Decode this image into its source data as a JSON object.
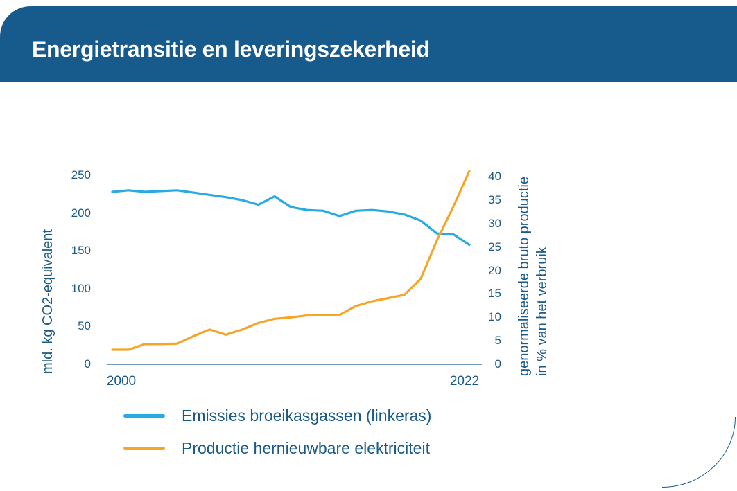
{
  "header": {
    "title": "Energietransitie en leveringszekerheid"
  },
  "colors": {
    "banner_bg": "#175b8d",
    "banner_text": "#ffffff",
    "axis_text": "#1a5a87",
    "axis_line": "#1a5a87",
    "emissions_line": "#29aae2",
    "renewables_line": "#f5a527",
    "corner_arc": "#1a5a87"
  },
  "chart_data": {
    "type": "line",
    "x": [
      2000,
      2001,
      2002,
      2003,
      2004,
      2005,
      2006,
      2007,
      2008,
      2009,
      2010,
      2011,
      2012,
      2013,
      2014,
      2015,
      2016,
      2017,
      2018,
      2019,
      2020,
      2021,
      2022
    ],
    "x_tick_labels": [
      "2000",
      "2022"
    ],
    "series": [
      {
        "name": "Emissies broeikasgassen (linkeras)",
        "axis": "left",
        "color": "#29aae2",
        "values": [
          228,
          230,
          228,
          229,
          230,
          227,
          224,
          221,
          217,
          211,
          222,
          208,
          204,
          203,
          196,
          203,
          204,
          202,
          198,
          190,
          173,
          172,
          158
        ]
      },
      {
        "name": "Productie hernieuwbare elektriciteit",
        "axis": "right",
        "color": "#f5a527",
        "values": [
          3.1,
          3.1,
          4.3,
          4.3,
          4.4,
          6.0,
          7.4,
          6.3,
          7.4,
          8.8,
          9.7,
          10.0,
          10.4,
          10.5,
          10.5,
          12.4,
          13.4,
          14.1,
          14.8,
          18.2,
          26.4,
          33.5,
          41.2
        ]
      }
    ],
    "left_axis": {
      "label": "mld. kg CO2-equivalent",
      "ticks": [
        0,
        50,
        100,
        150,
        200,
        250
      ],
      "range": [
        0,
        250
      ]
    },
    "right_axis": {
      "label_line1": "genormaliseerde bruto productie",
      "label_line2": "in % van het verbruik",
      "ticks": [
        0,
        5,
        10,
        15,
        20,
        25,
        30,
        35,
        40
      ],
      "range": [
        0,
        41.3
      ]
    },
    "grid": false,
    "legend_position": "bottom-left"
  }
}
